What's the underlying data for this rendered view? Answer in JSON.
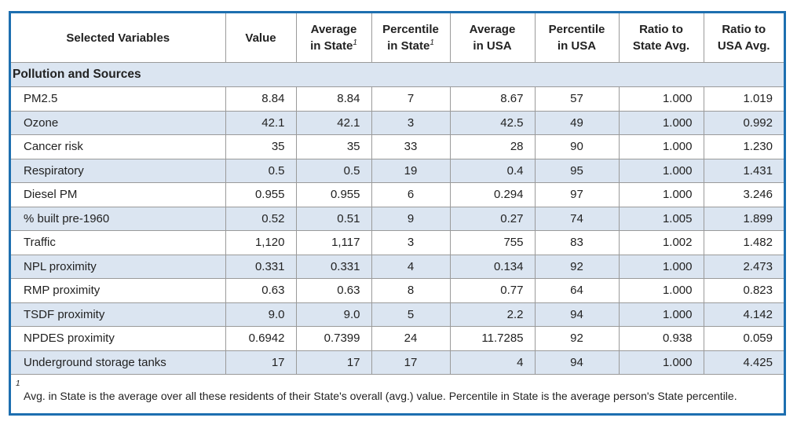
{
  "headers": {
    "variables": "Selected Variables",
    "value": "Value",
    "avg_state_1": "Average",
    "avg_state_2": "in State",
    "pct_state_1": "Percentile",
    "pct_state_2": "in State",
    "avg_usa_1": "Average",
    "avg_usa_2": "in USA",
    "pct_usa_1": "Percentile",
    "pct_usa_2": "in USA",
    "ratio_state_1": "Ratio to",
    "ratio_state_2": "State Avg.",
    "ratio_usa_1": "Ratio to",
    "ratio_usa_2": "USA Avg.",
    "footnote_marker": "1"
  },
  "section_title": "Pollution and Sources",
  "rows": [
    {
      "name": "PM2.5",
      "value": "8.84",
      "avg_state": "8.84",
      "pct_state": "7",
      "avg_usa": "8.67",
      "pct_usa": "57",
      "ratio_state": "1.000",
      "ratio_usa": "1.019"
    },
    {
      "name": "Ozone",
      "value": "42.1",
      "avg_state": "42.1",
      "pct_state": "3",
      "avg_usa": "42.5",
      "pct_usa": "49",
      "ratio_state": "1.000",
      "ratio_usa": "0.992"
    },
    {
      "name": "Cancer risk",
      "value": "35",
      "avg_state": "35",
      "pct_state": "33",
      "avg_usa": "28",
      "pct_usa": "90",
      "ratio_state": "1.000",
      "ratio_usa": "1.230"
    },
    {
      "name": "Respiratory",
      "value": "0.5",
      "avg_state": "0.5",
      "pct_state": "19",
      "avg_usa": "0.4",
      "pct_usa": "95",
      "ratio_state": "1.000",
      "ratio_usa": "1.431"
    },
    {
      "name": "Diesel PM",
      "value": "0.955",
      "avg_state": "0.955",
      "pct_state": "6",
      "avg_usa": "0.294",
      "pct_usa": "97",
      "ratio_state": "1.000",
      "ratio_usa": "3.246"
    },
    {
      "name": "% built pre-1960",
      "value": "0.52",
      "avg_state": "0.51",
      "pct_state": "9",
      "avg_usa": "0.27",
      "pct_usa": "74",
      "ratio_state": "1.005",
      "ratio_usa": "1.899"
    },
    {
      "name": "Traffic",
      "value": "1,120",
      "avg_state": "1,117",
      "pct_state": "3",
      "avg_usa": "755",
      "pct_usa": "83",
      "ratio_state": "1.002",
      "ratio_usa": "1.482"
    },
    {
      "name": "NPL proximity",
      "value": "0.331",
      "avg_state": "0.331",
      "pct_state": "4",
      "avg_usa": "0.134",
      "pct_usa": "92",
      "ratio_state": "1.000",
      "ratio_usa": "2.473"
    },
    {
      "name": "RMP proximity",
      "value": "0.63",
      "avg_state": "0.63",
      "pct_state": "8",
      "avg_usa": "0.77",
      "pct_usa": "64",
      "ratio_state": "1.000",
      "ratio_usa": "0.823"
    },
    {
      "name": "TSDF proximity",
      "value": "9.0",
      "avg_state": "9.0",
      "pct_state": "5",
      "avg_usa": "2.2",
      "pct_usa": "94",
      "ratio_state": "1.000",
      "ratio_usa": "4.142"
    },
    {
      "name": "NPDES proximity",
      "value": "0.6942",
      "avg_state": "0.7399",
      "pct_state": "24",
      "avg_usa": "11.7285",
      "pct_usa": "92",
      "ratio_state": "0.938",
      "ratio_usa": "0.059"
    },
    {
      "name": "Underground storage tanks",
      "value": "17",
      "avg_state": "17",
      "pct_state": "17",
      "avg_usa": "4",
      "pct_usa": "94",
      "ratio_state": "1.000",
      "ratio_usa": "4.425"
    }
  ],
  "footnote": {
    "marker": "1",
    "text": "Avg. in State is the average over all these residents of their State's overall (avg.) value. Percentile in State is the average person's State percentile."
  },
  "colors": {
    "border_accent": "#1d6fb0",
    "row_shade": "#dbe5f1",
    "grid_line": "#9a9a9a"
  }
}
